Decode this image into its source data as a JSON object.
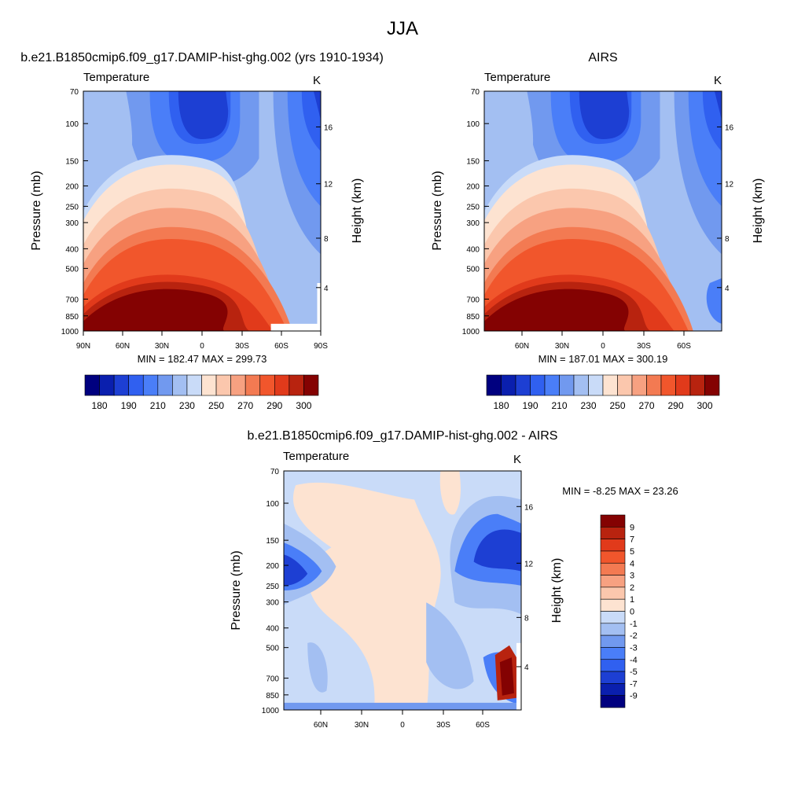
{
  "page_title": "JJA",
  "palettes": {
    "temperature": [
      "#00007f",
      "#0a1fae",
      "#1d3fd3",
      "#3060f0",
      "#4a7ef8",
      "#7199ef",
      "#a3bff2",
      "#c9dbf8",
      "#fde3d1",
      "#fbc7ad",
      "#f7a181",
      "#f37a52",
      "#f1562c",
      "#e13a1b",
      "#b8230f",
      "#840202"
    ],
    "difference": [
      "#00007f",
      "#0a1fae",
      "#1d3fd3",
      "#3060f0",
      "#4a7ef8",
      "#7199ef",
      "#a3bff2",
      "#c9dbf8",
      "#fde3d1",
      "#fbc7ad",
      "#f7a181",
      "#f37a52",
      "#f1562c",
      "#e13a1b",
      "#b8230f",
      "#840202"
    ]
  },
  "chart_data": [
    {
      "type": "heatmap",
      "title": "b.e21.B1850cmip6.f09_g17.DAMIP-hist-ghg.002 (yrs 1910-1934)",
      "left_string": "Temperature",
      "right_string": "K",
      "ylabel": "Pressure (mb)",
      "ylabel_right": "Height (km)",
      "x_ticks": [
        "90N",
        "60N",
        "30N",
        "0",
        "30S",
        "60S",
        "90S"
      ],
      "y_ticks": [
        "70",
        "100",
        "150",
        "200",
        "250",
        "300",
        "400",
        "500",
        "700",
        "850",
        "1000"
      ],
      "y_ticks_right": [
        "16",
        "12",
        "8",
        "4"
      ],
      "min_max": "MIN = 182.47  MAX = 299.73",
      "colorbar_labels": [
        "180",
        "190",
        "210",
        "230",
        "250",
        "270",
        "290",
        "300"
      ],
      "value_range": [
        182.47,
        299.73
      ],
      "missing_lower_right": true
    },
    {
      "type": "heatmap",
      "title": "AIRS",
      "left_string": "Temperature",
      "right_string": "K",
      "ylabel": "Pressure (mb)",
      "ylabel_right": "Height (km)",
      "x_ticks": [
        "60N",
        "30N",
        "0",
        "30S",
        "60S"
      ],
      "y_ticks": [
        "70",
        "100",
        "150",
        "200",
        "250",
        "300",
        "400",
        "500",
        "700",
        "850",
        "1000"
      ],
      "y_ticks_right": [
        "16",
        "12",
        "8",
        "4"
      ],
      "min_max": "MIN = 187.01  MAX = 300.19",
      "colorbar_labels": [
        "180",
        "190",
        "210",
        "230",
        "250",
        "270",
        "290",
        "300"
      ],
      "value_range": [
        187.01,
        300.19
      ]
    },
    {
      "type": "heatmap",
      "title": "b.e21.B1850cmip6.f09_g17.DAMIP-hist-ghg.002 - AIRS",
      "left_string": "Temperature",
      "right_string": "K",
      "ylabel": "Pressure (mb)",
      "ylabel_right": "Height (km)",
      "x_ticks": [
        "60N",
        "30N",
        "0",
        "30S",
        "60S"
      ],
      "y_ticks": [
        "70",
        "100",
        "150",
        "200",
        "250",
        "300",
        "400",
        "500",
        "700",
        "850",
        "1000"
      ],
      "y_ticks_right": [
        "16",
        "12",
        "8",
        "4"
      ],
      "min_max": "MIN =  -8.25  MAX =  23.26",
      "colorbar_labels": [
        "9",
        "7",
        "5",
        "4",
        "3",
        "2",
        "1",
        "0",
        "-1",
        "-2",
        "-3",
        "-4",
        "-5",
        "-7",
        "-9"
      ],
      "value_range": [
        -8.25,
        23.26
      ]
    }
  ]
}
